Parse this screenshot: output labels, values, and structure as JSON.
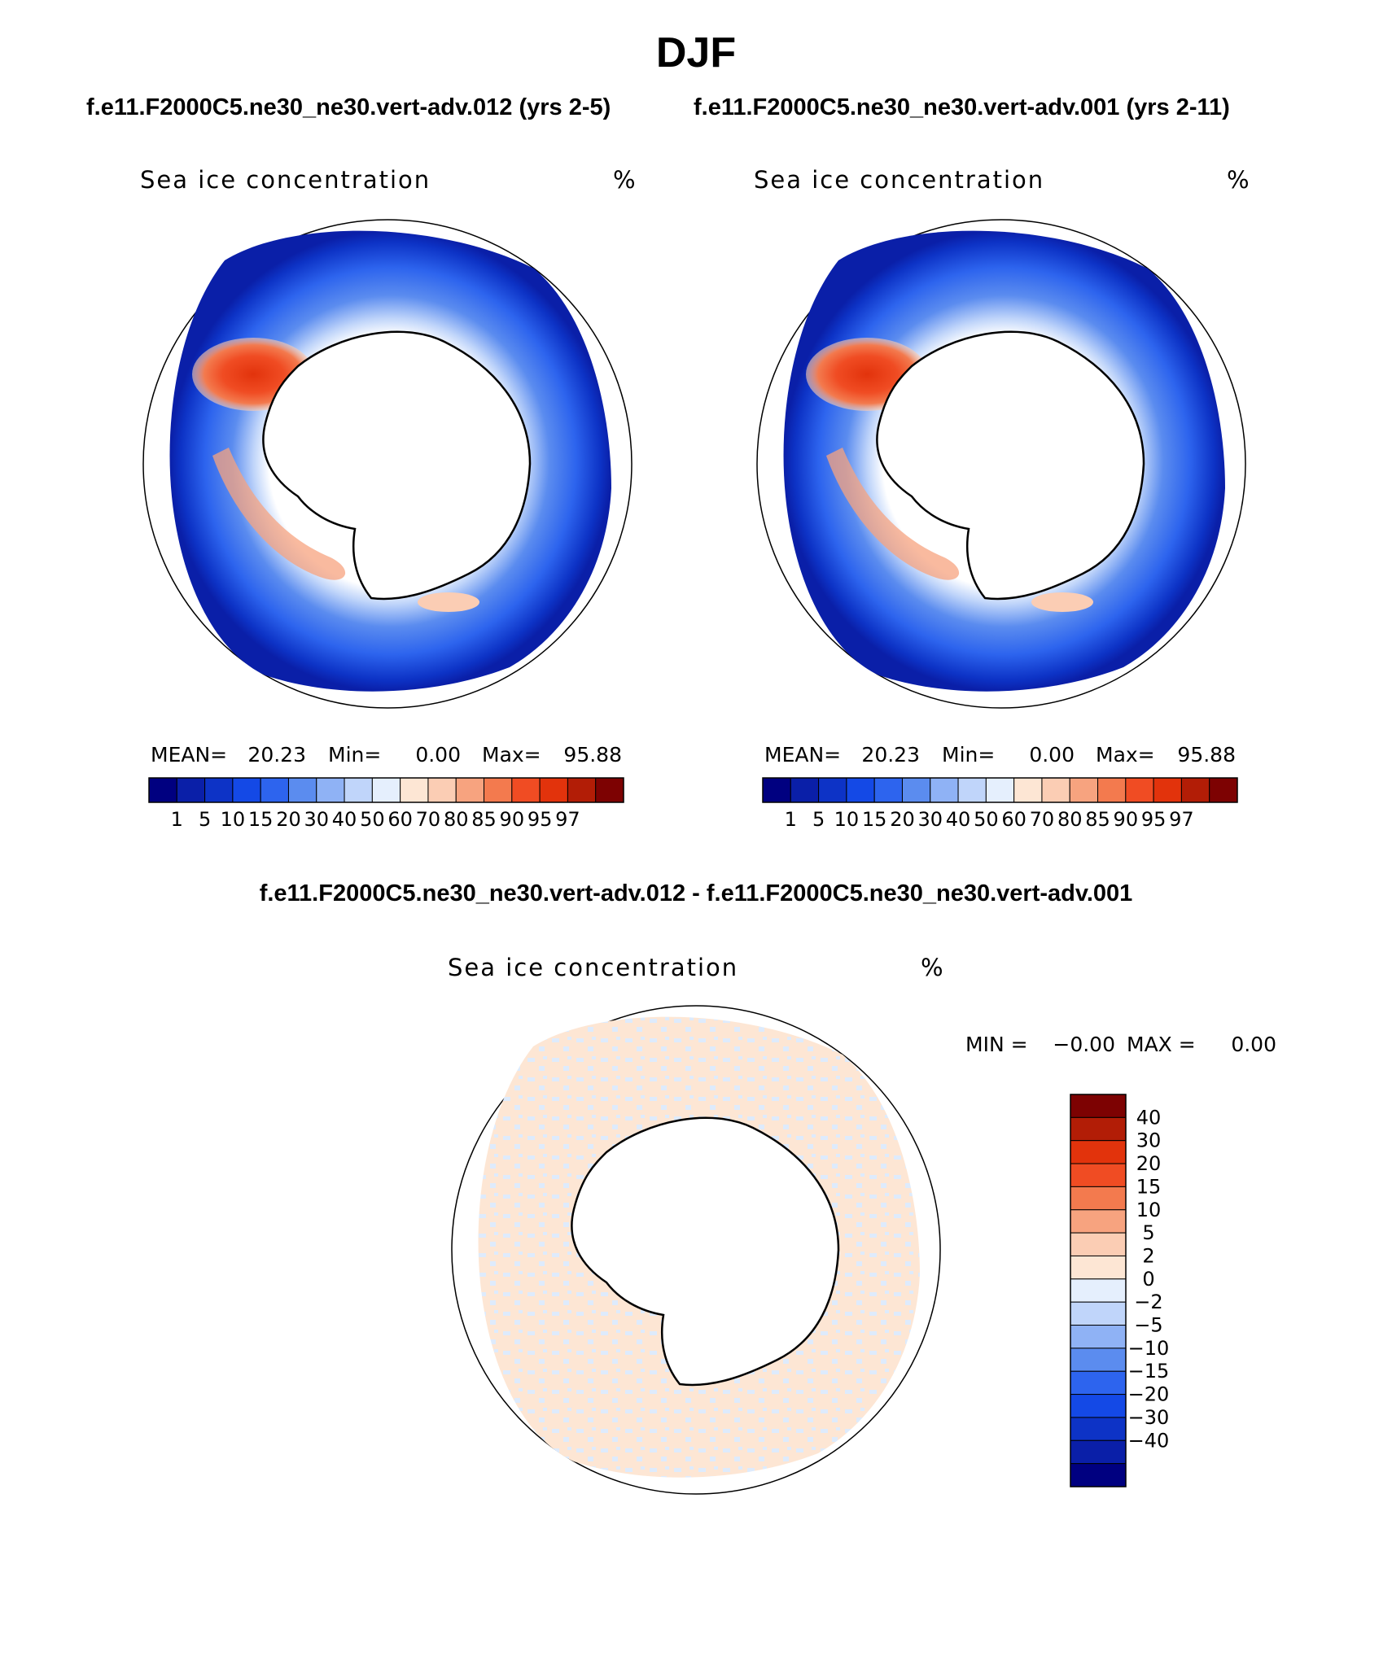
{
  "season_title": "DJF",
  "panels": [
    {
      "case_label": "f.e11.F2000C5.ne30_ne30.vert-adv.012 (yrs 2-5)",
      "variable": "Sea ice concentration",
      "units": "%",
      "stats": {
        "mean_label": "MEAN=",
        "mean": "20.23",
        "min_label": "Min=",
        "min": "0.00",
        "max_label": "Max=",
        "max": "95.88"
      },
      "colorbar_ticks": [
        "1",
        "5",
        "10",
        "15",
        "20",
        "30",
        "40",
        "50",
        "60",
        "70",
        "80",
        "85",
        "90",
        "95",
        "97"
      ]
    },
    {
      "case_label": "f.e11.F2000C5.ne30_ne30.vert-adv.001 (yrs 2-11)",
      "variable": "Sea ice concentration",
      "units": "%",
      "stats": {
        "mean_label": "MEAN=",
        "mean": "20.23",
        "min_label": "Min=",
        "min": "0.00",
        "max_label": "Max=",
        "max": "95.88"
      },
      "colorbar_ticks": [
        "1",
        "5",
        "10",
        "15",
        "20",
        "30",
        "40",
        "50",
        "60",
        "70",
        "80",
        "85",
        "90",
        "95",
        "97"
      ]
    }
  ],
  "difference": {
    "title": "f.e11.F2000C5.ne30_ne30.vert-adv.012 - f.e11.F2000C5.ne30_ne30.vert-adv.001",
    "variable": "Sea ice concentration",
    "units": "%",
    "stats": {
      "min_label": "MIN =",
      "min": "−0.00",
      "max_label": "MAX =",
      "max": "0.00"
    },
    "colorbar_ticks": [
      "40",
      "30",
      "20",
      "15",
      "10",
      "5",
      "2",
      "0",
      "−2",
      "−5",
      "−10",
      "−15",
      "−20",
      "−30",
      "−40"
    ]
  },
  "colors": {
    "sequential": [
      "#000080",
      "#0a1fa8",
      "#0d33c6",
      "#1449e6",
      "#2d64ee",
      "#5b8cef",
      "#8fb2f5",
      "#c0d5fa",
      "#e5effd",
      "#fde6d4",
      "#fbcdb4",
      "#f7a37f",
      "#f37a4e",
      "#f04c23",
      "#e2330c",
      "#b21d06",
      "#7d0202"
    ],
    "diverging": [
      "#7d0202",
      "#b21d06",
      "#e2330c",
      "#f04c23",
      "#f37a4e",
      "#f7a37f",
      "#fbcdb4",
      "#fde6d4",
      "#e5effd",
      "#c0d5fa",
      "#8fb2f5",
      "#5b8cef",
      "#2d64ee",
      "#1449e6",
      "#0d33c6",
      "#0a1fa8",
      "#000080"
    ]
  }
}
